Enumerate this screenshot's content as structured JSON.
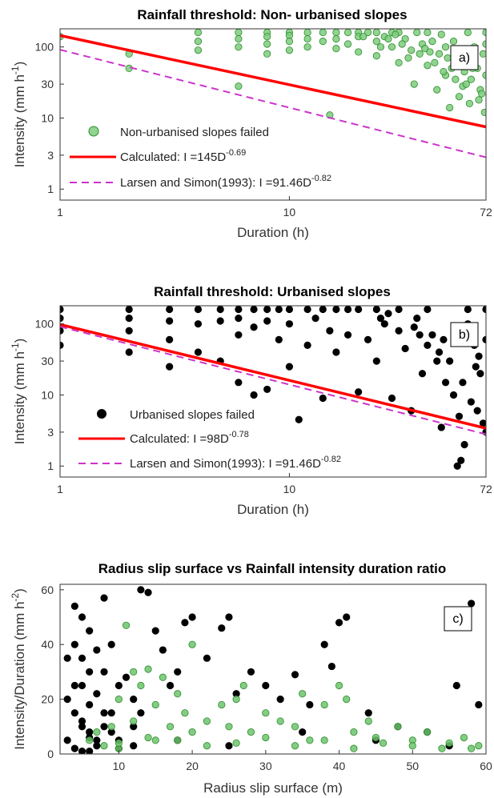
{
  "colors": {
    "non_urbanised": "#5cbf5c",
    "non_urbanised_edge": "#2e8b2e",
    "urbanised": "#000000",
    "calculated": "#ff0000",
    "larsen": "#cc33cc"
  },
  "chart_data": [
    {
      "type": "scatter",
      "panel": "a)",
      "title": "Rainfall threshold: Non- urbanised slopes",
      "xlabel": "Duration (h)",
      "ylabel": "Intensity (mm h",
      "ylabel_sup": "-1",
      "ylabel_close": ")",
      "xscale": "log",
      "yscale": "log",
      "xlim": [
        1,
        72
      ],
      "ylim": [
        0.7,
        180
      ],
      "xticks": [
        1,
        10,
        72
      ],
      "yticks": [
        1,
        3,
        10,
        30,
        100
      ],
      "legend": [
        {
          "kind": "marker",
          "label": "Non-urbanised slopes failed"
        },
        {
          "kind": "line",
          "label": "Calculated: I =145D",
          "sup": "-0.69"
        },
        {
          "kind": "dash",
          "label": "Larsen and Simon(1993): I =91.46D",
          "sup": "-0.82"
        }
      ],
      "series": [
        {
          "name": "Non-urbanised slopes failed",
          "type": "scatter",
          "x": [
            1,
            2,
            2,
            4,
            4,
            4,
            6,
            6,
            6,
            6,
            8,
            8,
            8,
            8,
            10,
            10,
            10,
            10,
            12,
            12,
            12,
            14,
            14,
            15,
            16,
            16,
            16,
            18,
            18,
            20,
            20,
            20,
            22,
            24,
            24,
            24,
            26,
            28,
            28,
            30,
            30,
            32,
            34,
            35,
            36,
            38,
            40,
            40,
            42,
            44,
            45,
            46,
            48,
            48,
            50,
            52,
            54,
            55,
            56,
            58,
            60,
            60,
            62,
            64,
            66,
            68,
            70,
            72,
            72,
            72,
            25,
            33,
            43,
            53,
            63,
            27,
            37,
            47,
            57,
            67,
            29,
            39,
            49,
            59,
            69,
            21,
            31,
            41,
            51,
            61,
            71
          ],
          "y": [
            140,
            80,
            50,
            160,
            120,
            90,
            160,
            130,
            100,
            28,
            160,
            140,
            110,
            80,
            160,
            145,
            120,
            90,
            160,
            130,
            100,
            160,
            120,
            11,
            160,
            130,
            95,
            160,
            110,
            160,
            140,
            85,
            160,
            160,
            120,
            75,
            140,
            160,
            100,
            160,
            60,
            130,
            90,
            30,
            160,
            110,
            160,
            55,
            120,
            25,
            80,
            150,
            100,
            40,
            14,
            120,
            60,
            20,
            90,
            45,
            160,
            70,
            35,
            100,
            50,
            25,
            80,
            160,
            110,
            40,
            100,
            70,
            60,
            35,
            50,
            130,
            80,
            45,
            28,
            18,
            150,
            95,
            70,
            30,
            22,
            140,
            110,
            85,
            50,
            16,
            12
          ]
        },
        {
          "name": "Calculated",
          "type": "line",
          "x": [
            1,
            72
          ],
          "y": [
            145,
            7.5
          ]
        },
        {
          "name": "Larsen and Simon(1993)",
          "type": "line",
          "x": [
            1,
            72
          ],
          "y": [
            91.46,
            2.8
          ]
        }
      ]
    },
    {
      "type": "scatter",
      "panel": "b)",
      "title": "Rainfall threshold: Urbanised slopes",
      "xlabel": "Duration (h)",
      "ylabel": "Intensity (mm h",
      "ylabel_sup": "-1",
      "ylabel_close": ")",
      "xscale": "log",
      "yscale": "log",
      "xlim": [
        1,
        72
      ],
      "ylim": [
        0.7,
        180
      ],
      "xticks": [
        1,
        10,
        72
      ],
      "yticks": [
        1,
        3,
        10,
        30,
        100
      ],
      "legend": [
        {
          "kind": "marker",
          "label": "Urbanised slopes failed"
        },
        {
          "kind": "line",
          "label": "Calculated: I =98D",
          "sup": "-0.78"
        },
        {
          "kind": "dash",
          "label": "Larsen and Simon(1993): I =91.46D",
          "sup": "-0.82"
        }
      ],
      "series": [
        {
          "name": "Urbanised slopes failed",
          "type": "scatter",
          "x": [
            1,
            1,
            1,
            1,
            2,
            2,
            2,
            2,
            3,
            3,
            3,
            3,
            4,
            4,
            4,
            5,
            5,
            5,
            6,
            6,
            6,
            6,
            7,
            7,
            7,
            8,
            8,
            8,
            9,
            9,
            10,
            10,
            10,
            11,
            12,
            12,
            13,
            14,
            14,
            15,
            16,
            16,
            18,
            18,
            20,
            20,
            22,
            24,
            24,
            26,
            28,
            30,
            32,
            34,
            36,
            38,
            40,
            42,
            44,
            46,
            48,
            50,
            52,
            54,
            55,
            56,
            58,
            60,
            62,
            64,
            66,
            68,
            70,
            72,
            72,
            72,
            30,
            40,
            50,
            60,
            25,
            35,
            45,
            65,
            27,
            37,
            47,
            57,
            67
          ],
          "y": [
            160,
            120,
            80,
            50,
            160,
            120,
            80,
            40,
            160,
            110,
            60,
            25,
            160,
            100,
            40,
            160,
            110,
            30,
            160,
            120,
            70,
            15,
            160,
            90,
            10,
            160,
            110,
            12,
            160,
            60,
            160,
            100,
            25,
            4.5,
            160,
            50,
            120,
            160,
            9,
            80,
            160,
            40,
            160,
            70,
            160,
            11,
            60,
            160,
            30,
            100,
            9,
            160,
            45,
            6,
            120,
            20,
            160,
            70,
            30,
            3.5,
            15,
            0.6,
            10,
            1,
            5,
            1.2,
            2,
            160,
            8,
            50,
            6,
            20,
            4,
            160,
            60,
            3,
            80,
            50,
            30,
            100,
            120,
            90,
            40,
            25,
            140,
            70,
            60,
            15,
            35
          ]
        },
        {
          "name": "Calculated",
          "type": "line",
          "x": [
            1,
            72
          ],
          "y": [
            98,
            3.4
          ]
        },
        {
          "name": "Larsen and Simon(1993)",
          "type": "line",
          "x": [
            1,
            72
          ],
          "y": [
            91.46,
            2.8
          ]
        }
      ]
    },
    {
      "type": "scatter",
      "panel": "c)",
      "title": "Radius slip surface vs Rainfall intensity duration ratio",
      "xlabel": "Radius slip surface (m)",
      "ylabel": "Intensity/Duration (mm h",
      "ylabel_sup": "-2",
      "ylabel_close": ")",
      "xlim": [
        2,
        60
      ],
      "ylim": [
        0,
        62
      ],
      "xticks": [
        10,
        20,
        30,
        40,
        50,
        60
      ],
      "yticks": [
        0,
        20,
        40,
        60
      ],
      "series": [
        {
          "name": "Urbanised",
          "type": "scatter",
          "x": [
            3,
            3,
            3,
            4,
            4,
            4,
            4,
            5,
            5,
            5,
            5,
            5,
            6,
            6,
            6,
            6,
            6,
            7,
            7,
            7,
            8,
            8,
            8,
            9,
            9,
            10,
            10,
            11,
            12,
            12,
            13,
            13,
            14,
            15,
            16,
            17,
            18,
            19,
            20,
            22,
            24,
            25,
            26,
            28,
            30,
            32,
            34,
            36,
            38,
            39,
            40,
            41,
            44,
            48,
            52,
            56,
            58,
            59,
            12,
            18,
            25,
            35,
            45,
            55,
            4,
            5,
            6,
            7,
            8,
            9,
            10
          ],
          "y": [
            35,
            20,
            5,
            54,
            40,
            15,
            2,
            50,
            35,
            25,
            10,
            1,
            45,
            30,
            18,
            8,
            1,
            38,
            22,
            5,
            57,
            30,
            10,
            40,
            15,
            25,
            5,
            28,
            20,
            3,
            60,
            15,
            59,
            45,
            38,
            25,
            30,
            48,
            50,
            35,
            46,
            50,
            22,
            30,
            25,
            20,
            29,
            18,
            40,
            32,
            48,
            50,
            15,
            10,
            8,
            25,
            55,
            18,
            10,
            5,
            3,
            8,
            5,
            3,
            25,
            12,
            6,
            3,
            15,
            8,
            2
          ]
        },
        {
          "name": "Non-urbanised",
          "type": "scatter",
          "x": [
            6,
            7,
            8,
            9,
            10,
            10,
            11,
            12,
            12,
            13,
            14,
            15,
            15,
            16,
            17,
            18,
            19,
            20,
            20,
            22,
            24,
            25,
            26,
            27,
            28,
            30,
            32,
            34,
            35,
            36,
            38,
            40,
            41,
            42,
            44,
            45,
            48,
            50,
            52,
            55,
            57,
            59,
            10,
            14,
            18,
            22,
            26,
            30,
            34,
            38,
            42,
            46,
            50,
            54,
            58
          ],
          "y": [
            5,
            8,
            3,
            10,
            20,
            2,
            47,
            12,
            30,
            25,
            31,
            18,
            5,
            28,
            10,
            22,
            15,
            40,
            8,
            12,
            18,
            10,
            20,
            25,
            8,
            15,
            12,
            10,
            22,
            5,
            18,
            25,
            20,
            8,
            12,
            6,
            10,
            5,
            8,
            4,
            6,
            3,
            4,
            6,
            5,
            3,
            4,
            6,
            3,
            5,
            2,
            4,
            3,
            2,
            2
          ]
        }
      ]
    }
  ]
}
